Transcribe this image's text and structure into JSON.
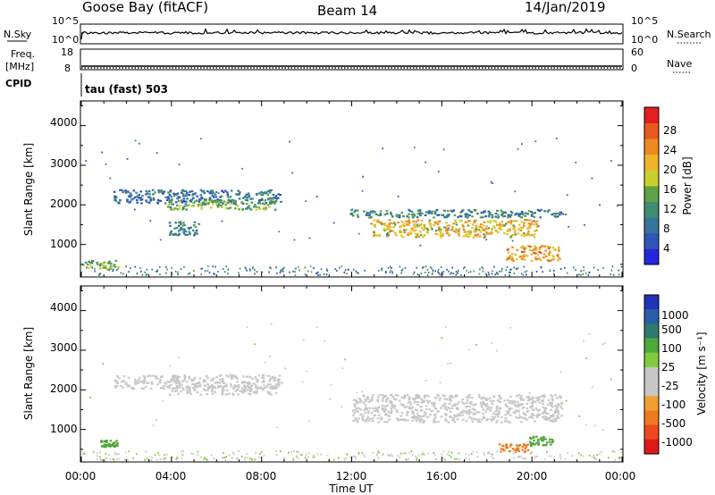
{
  "header": {
    "station": "Goose Bay (fitACF)",
    "beam": "Beam 14",
    "date": "14/Jan/2019"
  },
  "strip_panels": {
    "nsky": {
      "left_label": "N.Sky",
      "right_label": "N.Search",
      "left_ticks": [
        "10^5",
        "10^0"
      ],
      "right_ticks": [
        "10^5",
        "10^0"
      ]
    },
    "freq": {
      "left_label_1": "Freq.",
      "left_label_2": "[MHz]",
      "right_label": "Nave",
      "left_ticks": [
        "18",
        "8"
      ],
      "right_ticks": [
        "60",
        "0"
      ]
    },
    "cpid": {
      "label": "CPID",
      "value": "tau (fast) 503"
    }
  },
  "colorbars": {
    "power": {
      "title": "Power [dB]",
      "ticks": [
        "28",
        "24",
        "20",
        "16",
        "12",
        "8",
        "4"
      ],
      "colors": [
        "#2626e0",
        "#2f55b8",
        "#36749a",
        "#3e8c72",
        "#5ea244",
        "#c9d02e",
        "#f0b52a",
        "#ee8a22",
        "#e85a1e",
        "#e31e1e"
      ]
    },
    "velocity": {
      "title": "Velocity [m s⁻¹]",
      "ticks": [
        "1000",
        "500",
        "100",
        "25",
        "-25",
        "-100",
        "-500",
        "-1000"
      ],
      "colors": [
        "#2133b7",
        "#2a5ea7",
        "#2e7a6e",
        "#4fa83a",
        "#7fcd3e",
        "#c8c8c8",
        "#c8c8c8",
        "#f0a030",
        "#f07a20",
        "#ee4a1e",
        "#e01818"
      ]
    }
  },
  "axes": {
    "ylabel": "Slant Range [km]",
    "xlabel": "Time UT",
    "yticks": [
      "4000",
      "3000",
      "2000",
      "1000"
    ],
    "xticks": [
      "00:00",
      "04:00",
      "08:00",
      "12:00",
      "16:00",
      "20:00",
      "00:00"
    ]
  },
  "chart_data": [
    {
      "type": "heatmap",
      "name": "power",
      "x_unit": "hours UT",
      "y_unit": "km",
      "xlim": [
        0,
        24
      ],
      "ylim": [
        180,
        4600
      ],
      "color_scale_db": [
        0,
        32
      ],
      "regions": [
        {
          "t0": 1.4,
          "t1": 8.9,
          "r0": 2050,
          "r1": 2400,
          "level": 8
        },
        {
          "t0": 3.8,
          "t1": 8.6,
          "r0": 1900,
          "r1": 2150,
          "level": 14
        },
        {
          "t0": 3.8,
          "t1": 5.2,
          "r0": 1250,
          "r1": 1600,
          "level": 10
        },
        {
          "t0": 11.9,
          "t1": 21.5,
          "r0": 1700,
          "r1": 1900,
          "level": 10
        },
        {
          "t0": 12.8,
          "t1": 20.2,
          "r0": 1200,
          "r1": 1650,
          "level": 20
        },
        {
          "t0": 18.8,
          "t1": 21.2,
          "r0": 600,
          "r1": 1000,
          "level": 22
        },
        {
          "t0": 0.0,
          "t1": 1.6,
          "r0": 380,
          "r1": 620,
          "level": 14
        }
      ]
    },
    {
      "type": "heatmap",
      "name": "velocity",
      "x_unit": "hours UT",
      "y_unit": "km",
      "xlim": [
        0,
        24
      ],
      "ylim": [
        180,
        4600
      ],
      "color_scale_ms": [
        -1000,
        1000
      ],
      "regions": [
        {
          "t0": 1.4,
          "t1": 8.9,
          "r0": 2050,
          "r1": 2400,
          "level": 0
        },
        {
          "t0": 3.8,
          "t1": 8.6,
          "r0": 1900,
          "r1": 2150,
          "level": 0
        },
        {
          "t0": 12.0,
          "t1": 21.3,
          "r0": 1200,
          "r1": 1900,
          "level": 0
        },
        {
          "t0": 19.8,
          "t1": 20.9,
          "r0": 600,
          "r1": 850,
          "level": 150
        },
        {
          "t0": 0.8,
          "t1": 1.6,
          "r0": 580,
          "r1": 750,
          "level": 120
        },
        {
          "t0": 18.5,
          "t1": 19.8,
          "r0": 450,
          "r1": 650,
          "level": -300
        }
      ]
    }
  ]
}
